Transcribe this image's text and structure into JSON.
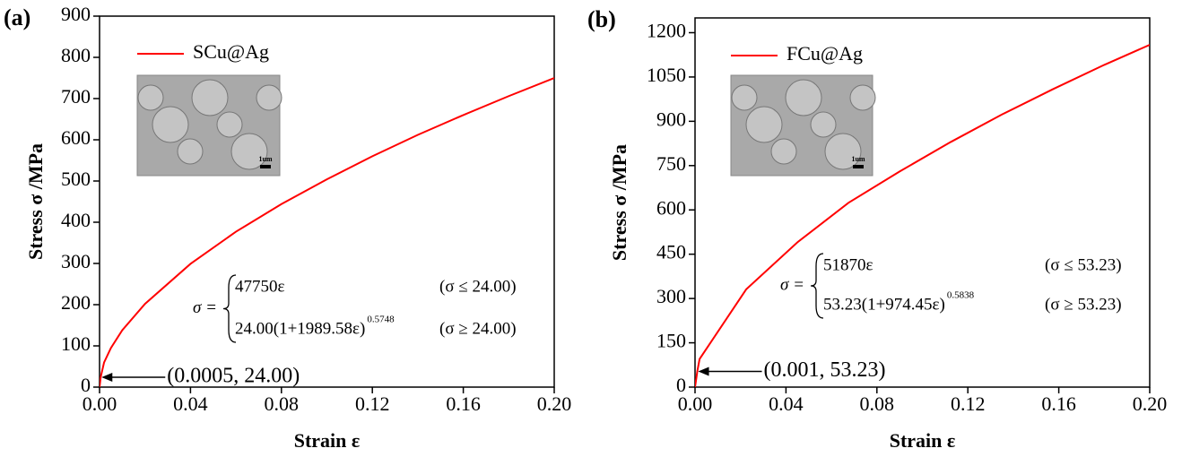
{
  "chart_data": [
    {
      "type": "line",
      "panel_label": "(a)",
      "xlabel": "Strain ε",
      "ylabel": "Stress σ /MPa",
      "xlim": [
        0,
        0.2
      ],
      "ylim": [
        0,
        900
      ],
      "xticks": [
        {
          "value": 0,
          "label": "0.00"
        },
        {
          "value": 0.04,
          "label": "0.04"
        },
        {
          "value": 0.08,
          "label": "0.08"
        },
        {
          "value": 0.12,
          "label": "0.12"
        },
        {
          "value": 0.16,
          "label": "0.16"
        },
        {
          "value": 0.2,
          "label": "0.20"
        }
      ],
      "yticks": [
        0,
        100,
        200,
        300,
        400,
        500,
        600,
        700,
        800,
        900
      ],
      "x": [
        0,
        0.0005,
        0.002,
        0.005,
        0.01,
        0.02,
        0.04,
        0.06,
        0.08,
        0.1,
        0.12,
        0.14,
        0.16,
        0.18,
        0.2
      ],
      "series": [
        {
          "name": "SCu@Ag",
          "color": "#ff0000",
          "values": [
            0,
            24,
            60,
            95,
            138,
            202,
            299,
            377,
            444,
            504,
            560,
            612,
            660,
            706,
            750
          ]
        }
      ],
      "annotation": {
        "text": "(0.0005, 24.00)",
        "x": 0.0005,
        "y": 24
      },
      "equation": {
        "lhs": "σ =",
        "cases": [
          {
            "expr": "47750ε",
            "cond": "(σ ≤ 24.00)"
          },
          {
            "expr": "24.00(1+1989.58ε)",
            "exponent": "0.5748",
            "cond": "(σ ≥ 24.00)"
          }
        ]
      },
      "inset_scale_label": "1um"
    },
    {
      "type": "line",
      "panel_label": "(b)",
      "xlabel": "Strain ε",
      "ylabel": "Stress σ /MPa",
      "xlim": [
        0,
        0.2
      ],
      "ylim": [
        0,
        1250
      ],
      "xticks": [
        {
          "value": 0,
          "label": "0.00"
        },
        {
          "value": 0.04,
          "label": "0.04"
        },
        {
          "value": 0.08,
          "label": "0.08"
        },
        {
          "value": 0.12,
          "label": "0.12"
        },
        {
          "value": 0.16,
          "label": "0.16"
        },
        {
          "value": 0.2,
          "label": "0.20"
        }
      ],
      "yticks": [
        0,
        150,
        300,
        450,
        600,
        750,
        900,
        1050,
        1200
      ],
      "x": [
        0,
        0.001,
        0.002,
        0.0225,
        0.045,
        0.0675,
        0.09,
        0.1125,
        0.135,
        0.1575,
        0.18,
        0.2
      ],
      "series": [
        {
          "name": "FCu@Ag",
          "color": "#ff0000",
          "values": [
            0,
            53.23,
            95,
            331,
            490,
            624,
            730,
            830,
            923,
            1009,
            1091,
            1159
          ]
        }
      ],
      "annotation": {
        "text": "(0.001, 53.23)",
        "x": 0.001,
        "y": 53.23
      },
      "equation": {
        "lhs": "σ =",
        "cases": [
          {
            "expr": "51870ε",
            "cond": "(σ ≤ 53.23)"
          },
          {
            "expr": "53.23(1+974.45ε)",
            "exponent": "0.5838",
            "cond": "(σ ≥ 53.23)"
          }
        ]
      },
      "inset_scale_label": "1um"
    }
  ]
}
